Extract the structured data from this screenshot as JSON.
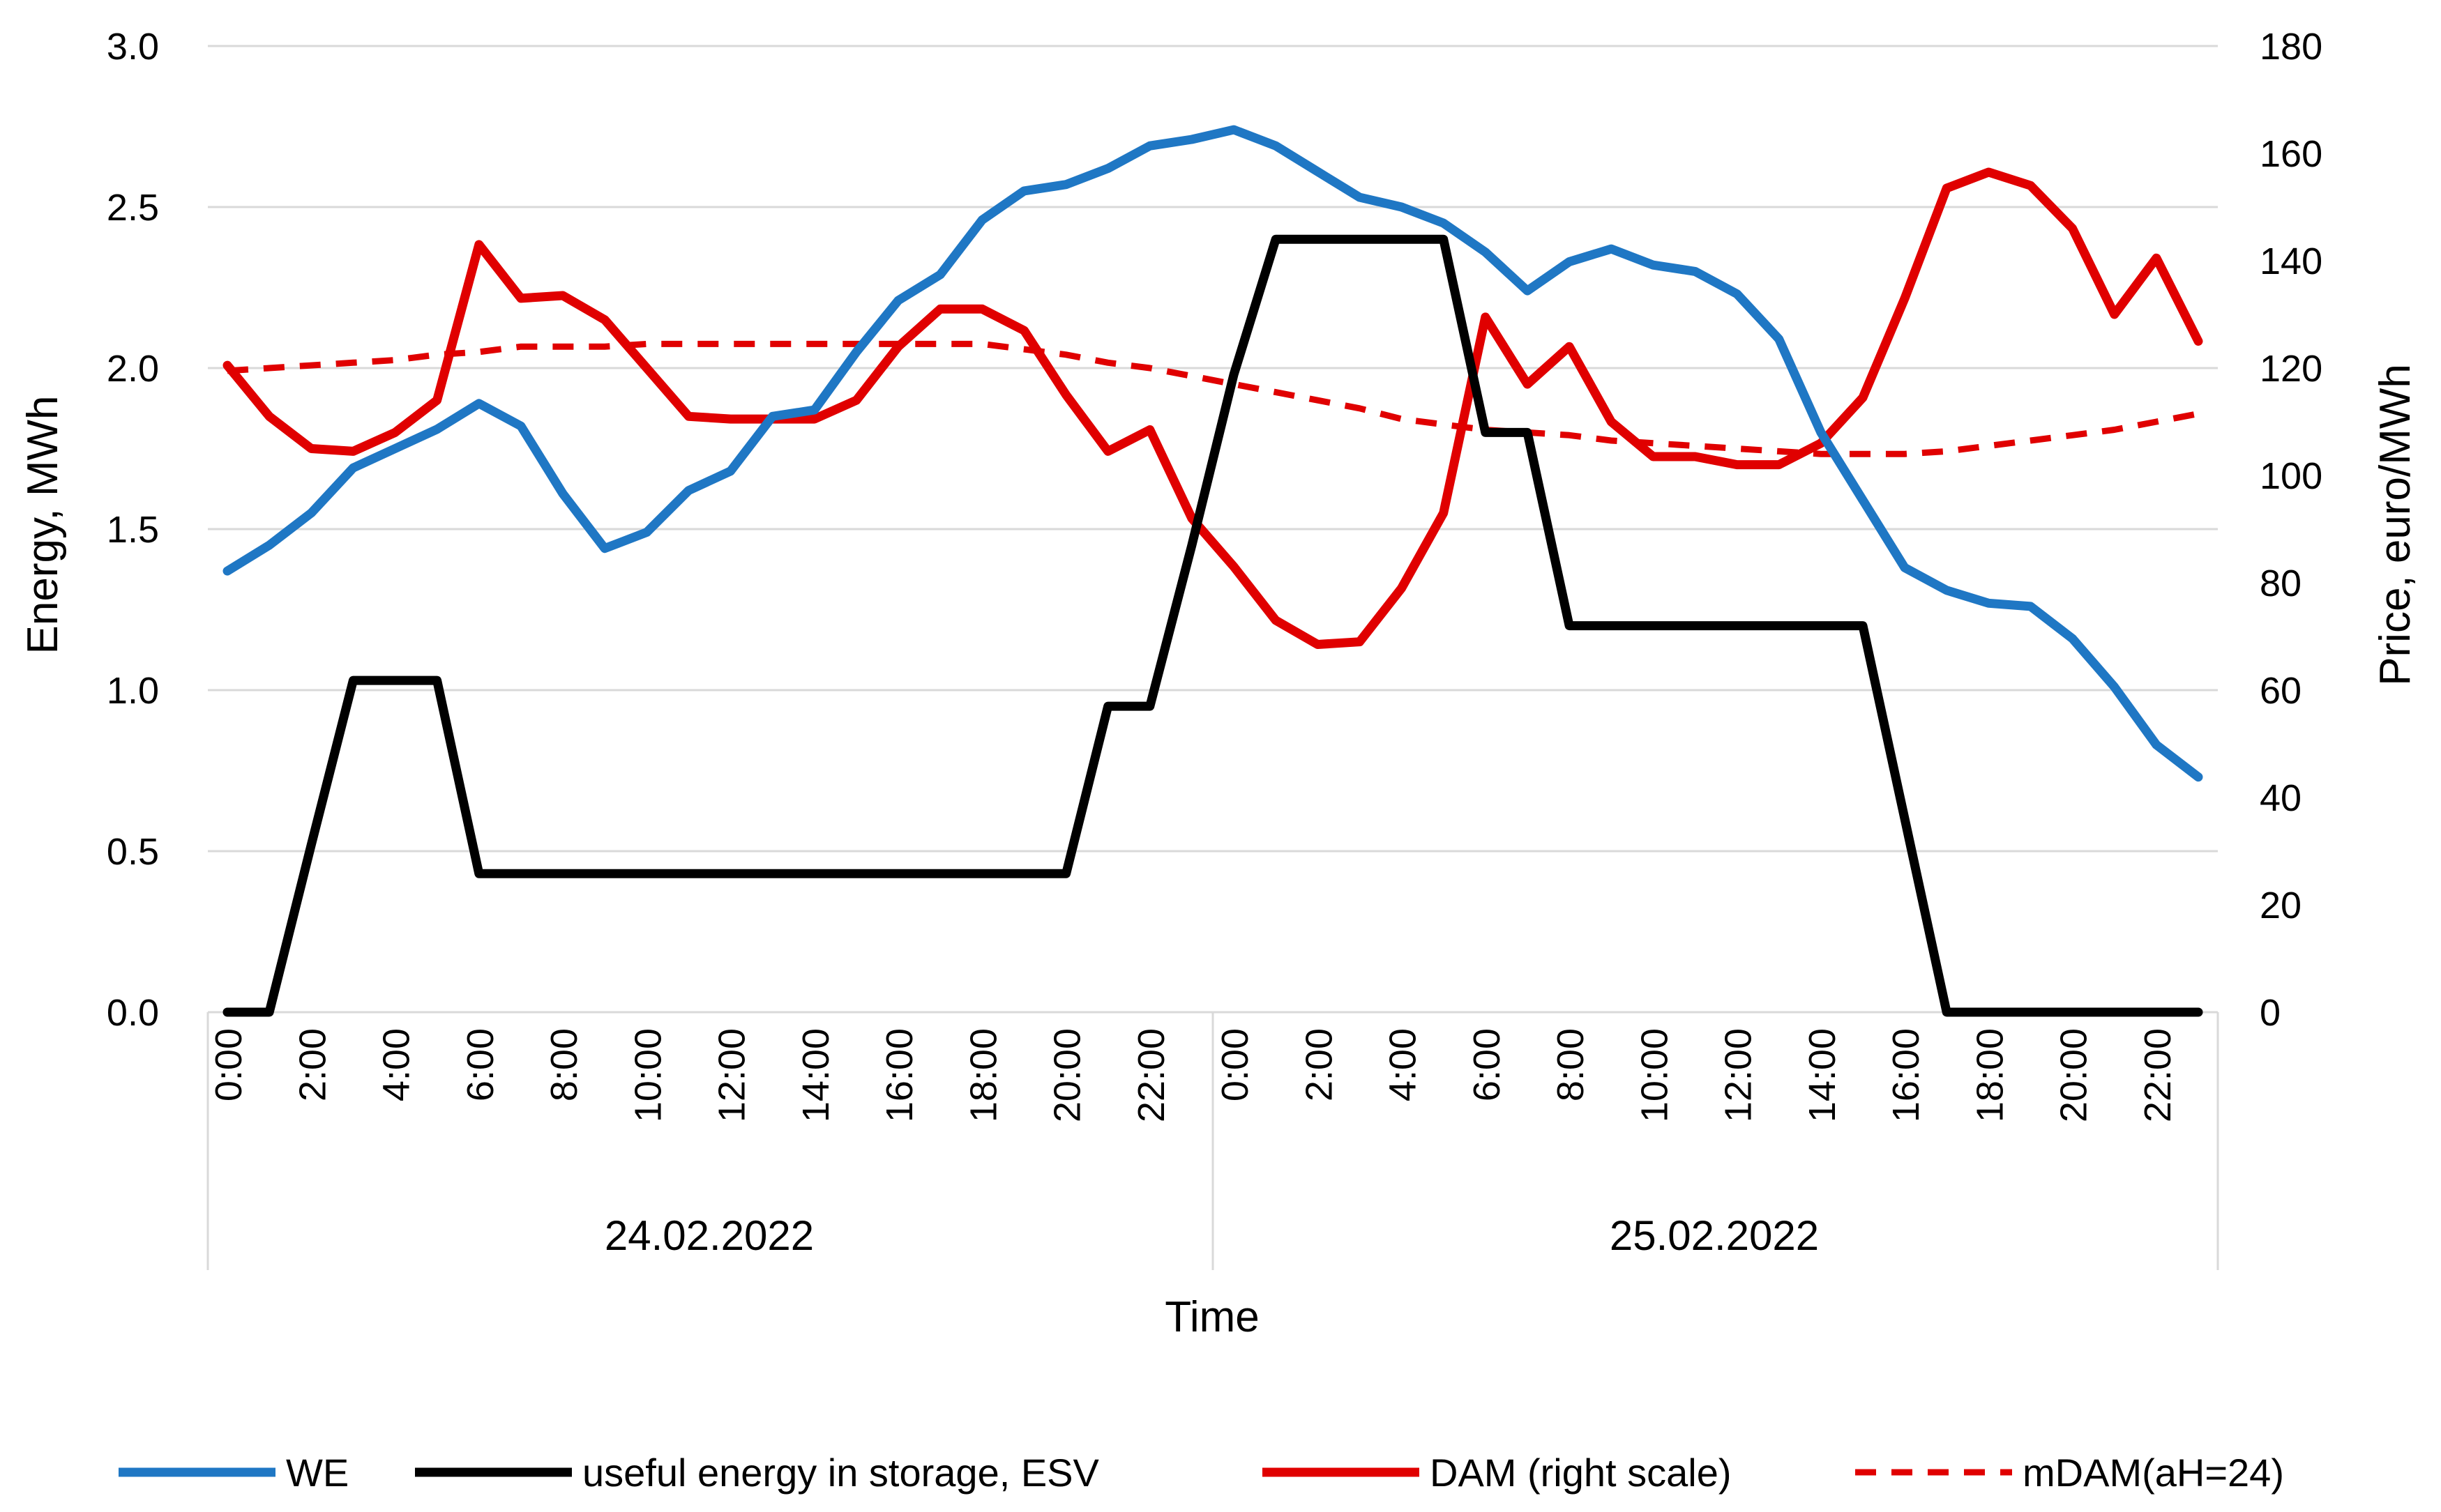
{
  "chart_data": {
    "type": "line",
    "title": "",
    "xlabel": "Time",
    "ylabel_left": "Energy, MWh",
    "ylabel_right": "Price, euro/MWh",
    "ylim_left": [
      0,
      3
    ],
    "ylim_right": [
      0,
      180
    ],
    "left_ticks": [
      "0.0",
      "0.5",
      "1.0",
      "1.5",
      "2.0",
      "2.5",
      "3.0"
    ],
    "left_tick_values": [
      0,
      0.5,
      1.0,
      1.5,
      2.0,
      2.5,
      3.0
    ],
    "right_ticks": [
      "0",
      "20",
      "40",
      "60",
      "80",
      "100",
      "120",
      "140",
      "160",
      "180"
    ],
    "right_tick_values": [
      0,
      20,
      40,
      60,
      80,
      100,
      120,
      140,
      160,
      180
    ],
    "x_tick_labels": [
      "0:00",
      "2:00",
      "4:00",
      "6:00",
      "8:00",
      "10:00",
      "12:00",
      "14:00",
      "16:00",
      "18:00",
      "20:00",
      "22:00",
      "0:00",
      "2:00",
      "4:00",
      "6:00",
      "8:00",
      "10:00",
      "12:00",
      "14:00",
      "16:00",
      "18:00",
      "20:00",
      "22:00"
    ],
    "x_tick_hours": [
      0,
      2,
      4,
      6,
      8,
      10,
      12,
      14,
      16,
      18,
      20,
      22,
      24,
      26,
      28,
      30,
      32,
      34,
      36,
      38,
      40,
      42,
      44,
      46
    ],
    "days": [
      "24.02.2022",
      "25.02.2022"
    ],
    "grid": "horizontal",
    "legend_position": "bottom",
    "x_hours": [
      0,
      1,
      2,
      3,
      4,
      5,
      6,
      7,
      8,
      9,
      10,
      11,
      12,
      13,
      14,
      15,
      16,
      17,
      18,
      19,
      20,
      21,
      22,
      23,
      24,
      25,
      26,
      27,
      28,
      29,
      30,
      31,
      32,
      33,
      34,
      35,
      36,
      37,
      38,
      39,
      40,
      41,
      42,
      43,
      44,
      45,
      46,
      47
    ],
    "series": [
      {
        "name": "WE",
        "axis": "left",
        "color": "#1f77c4",
        "dash": false,
        "values": [
          1.37,
          1.45,
          1.55,
          1.69,
          1.75,
          1.81,
          1.89,
          1.82,
          1.61,
          1.44,
          1.49,
          1.62,
          1.68,
          1.85,
          1.87,
          2.05,
          2.21,
          2.29,
          2.46,
          2.55,
          2.57,
          2.62,
          2.69,
          2.71,
          2.74,
          2.69,
          2.61,
          2.53,
          2.5,
          2.45,
          2.36,
          2.24,
          2.33,
          2.37,
          2.32,
          2.3,
          2.23,
          2.09,
          1.8,
          1.59,
          1.38,
          1.31,
          1.27,
          1.26,
          1.16,
          1.01,
          0.83,
          0.73
        ]
      },
      {
        "name": "useful energy in  storage, ESV",
        "axis": "left",
        "color": "#000000",
        "dash": false,
        "values": [
          0,
          0,
          0.52,
          1.03,
          1.03,
          1.03,
          0.43,
          0.43,
          0.43,
          0.43,
          0.43,
          0.43,
          0.43,
          0.43,
          0.43,
          0.43,
          0.43,
          0.43,
          0.43,
          0.43,
          0.43,
          0.95,
          0.95,
          1.45,
          1.98,
          2.4,
          2.4,
          2.4,
          2.4,
          2.4,
          1.8,
          1.8,
          1.2,
          1.2,
          1.2,
          1.2,
          1.2,
          1.2,
          1.2,
          1.2,
          0.6,
          0,
          0,
          0,
          0,
          0,
          0,
          0
        ]
      },
      {
        "name": "DAM (right scale)",
        "axis": "right",
        "color": "#e00000",
        "dash": false,
        "values": [
          120.5,
          111,
          105,
          104.5,
          108,
          114,
          143,
          133,
          133.5,
          129,
          120,
          111,
          110.5,
          110.5,
          110.5,
          114,
          124,
          131,
          131,
          127,
          115,
          104.5,
          108.5,
          92,
          83,
          73,
          68.5,
          69,
          79,
          93,
          129.5,
          117,
          124,
          110,
          103.5,
          103.5,
          102,
          102,
          106,
          114.5,
          133,
          153.5,
          156.5,
          154,
          146,
          130,
          140.5,
          125
        ]
      },
      {
        "name": "mDAM(aH=24)",
        "axis": "right",
        "color": "#e00000",
        "dash": true,
        "values": [
          119.5,
          120,
          120.5,
          121,
          121.5,
          122.5,
          123,
          124,
          124,
          124,
          124.5,
          124.5,
          124.5,
          124.5,
          124.5,
          124.5,
          124.5,
          124.5,
          124.5,
          123.5,
          122.5,
          121,
          120,
          118.5,
          117,
          115.5,
          114,
          112.5,
          110.5,
          109.5,
          108.5,
          108,
          107.5,
          106.5,
          106,
          105.5,
          105,
          104.5,
          104,
          104,
          104,
          104.5,
          105.5,
          106.5,
          107.5,
          108.5,
          110,
          111.5
        ]
      }
    ]
  }
}
